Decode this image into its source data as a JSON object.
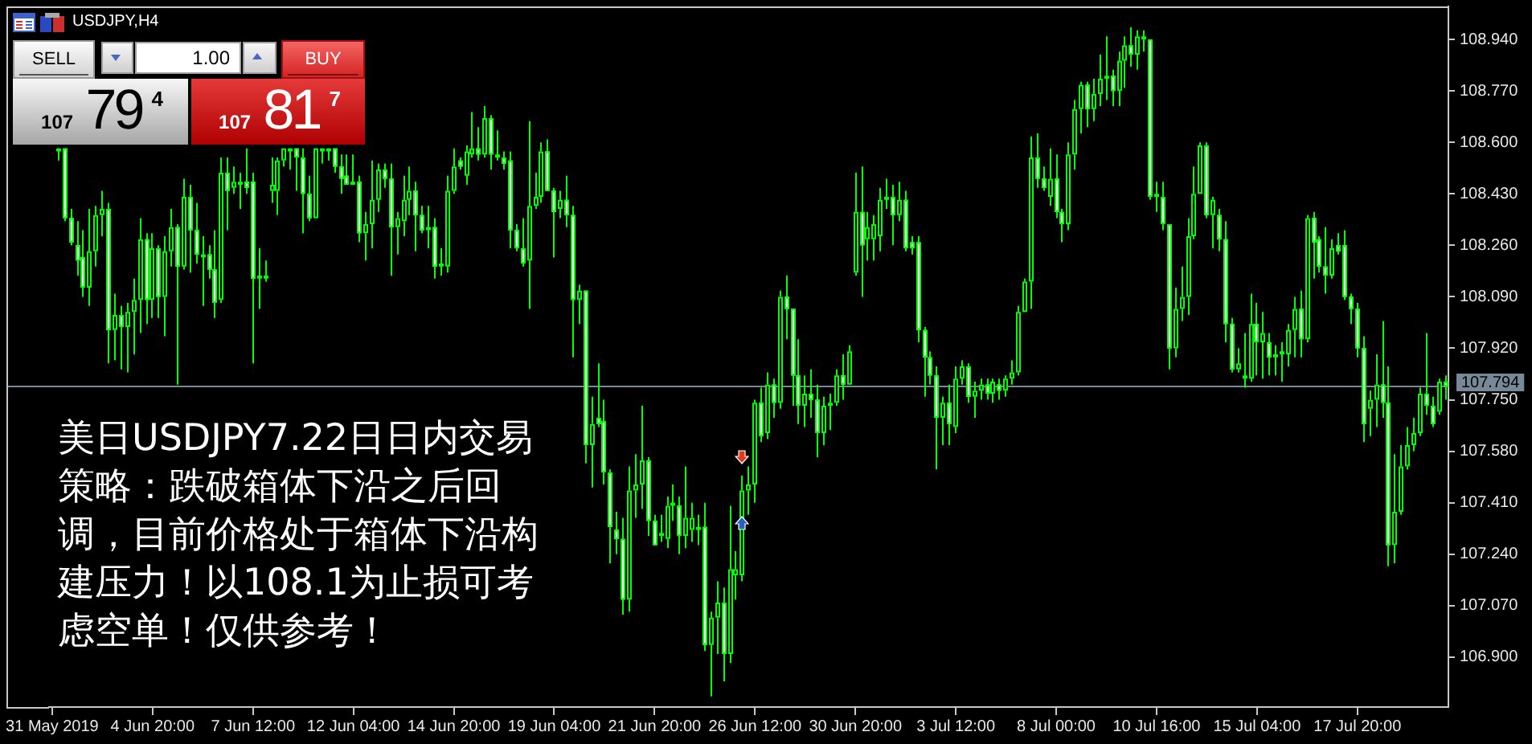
{
  "chart_data": {
    "type": "candlestick",
    "title": "USDJPY,H4",
    "annotations": [
      "美日USDJPY7.22日日内交易策略：跌破箱体下沿之后回调，目前价格处于箱体下沿构建压力！以108.1为止损可考虑空单！仅供参考！",
      "SELL",
      "1.00",
      "BUY",
      "107 79$^{4}$",
      "107 81$^{7}$"
    ],
    "categories": [
      "31 May 2019",
      null,
      null,
      null,
      null,
      null,
      null,
      null,
      null,
      null,
      null,
      null,
      null,
      null,
      null,
      null,
      "4 Jun 20:00",
      null,
      null,
      null,
      null,
      null,
      null,
      null,
      null,
      null,
      null,
      null,
      null,
      null,
      null,
      null,
      "7 Jun 12:00",
      null,
      null,
      null,
      null,
      null,
      null,
      null,
      null,
      null,
      null,
      null,
      null,
      null,
      null,
      null,
      "12 Jun 04:00",
      null,
      null,
      null,
      null,
      null,
      null,
      null,
      null,
      null,
      null,
      null,
      null,
      null,
      null,
      null,
      "14 Jun 20:00",
      null,
      null,
      null,
      null,
      null,
      null,
      null,
      null,
      null,
      null,
      null,
      null,
      null,
      null,
      null,
      "19 Jun 04:00",
      null,
      null,
      null,
      null,
      null,
      null,
      null,
      null,
      null,
      null,
      null,
      null,
      null,
      null,
      null,
      "21 Jun 20:00",
      null,
      null,
      null,
      null,
      null,
      null,
      null,
      null,
      null,
      null,
      null,
      null,
      null,
      null,
      null,
      "26 Jun 12:00",
      null,
      null,
      null,
      null,
      null,
      null,
      null,
      null,
      null,
      null,
      null,
      null,
      null,
      null,
      null,
      "30 Jun 20:00",
      null,
      null,
      null,
      null,
      null,
      null,
      null,
      null,
      null,
      null,
      null,
      null,
      null,
      null,
      null,
      "3 Jul 12:00",
      null,
      null,
      null,
      null,
      null,
      null,
      null,
      null,
      null,
      null,
      null,
      null,
      null,
      null,
      null,
      "8 Jul 00:00",
      null,
      null,
      null,
      null,
      null,
      null,
      null,
      null,
      null,
      null,
      null,
      null,
      null,
      null,
      null,
      "10 Jul 16:00",
      null,
      null,
      null,
      null,
      null,
      null,
      null,
      null,
      null,
      null,
      null,
      null,
      null,
      null,
      null,
      "15 Jul 04:00",
      null,
      null,
      null,
      null,
      null,
      null,
      null,
      null,
      null,
      null,
      null,
      null,
      null,
      null,
      null,
      "17 Jul 20:00",
      null,
      null,
      null,
      null,
      null,
      null,
      null,
      null,
      null,
      null,
      null,
      null,
      null,
      null
    ],
    "ohlc": [
      null,
      [
        108.58,
        108.58,
        108.54,
        108.57
      ],
      [
        108.58,
        108.58,
        108.34,
        108.35
      ],
      [
        108.35,
        108.38,
        108.26,
        108.27
      ],
      [
        108.26,
        108.34,
        108.16,
        108.21
      ],
      [
        108.22,
        108.31,
        108.09,
        108.12
      ],
      [
        108.12,
        108.38,
        108.06,
        108.24
      ],
      [
        108.24,
        108.39,
        108.19,
        108.36
      ],
      [
        108.36,
        108.44,
        108.29,
        108.38
      ],
      [
        108.38,
        108.4,
        107.87,
        107.98
      ],
      [
        107.98,
        108.1,
        107.88,
        108.03
      ],
      [
        108.03,
        108.06,
        107.85,
        107.99
      ],
      [
        107.99,
        108.07,
        107.84,
        108.04
      ],
      [
        108.04,
        108.15,
        107.9,
        108.08
      ],
      [
        108.08,
        108.35,
        107.97,
        108.28
      ],
      [
        108.28,
        108.3,
        108.0,
        108.08
      ],
      [
        108.08,
        108.3,
        108.02,
        108.25
      ],
      [
        108.25,
        108.26,
        108.02,
        108.09
      ],
      [
        108.09,
        108.29,
        107.96,
        108.24
      ],
      [
        108.24,
        108.38,
        108.19,
        108.32
      ],
      [
        108.32,
        108.33,
        107.8,
        108.19
      ],
      [
        108.19,
        108.48,
        108.18,
        108.42
      ],
      [
        108.42,
        108.46,
        108.17,
        108.31
      ],
      [
        108.31,
        108.4,
        108.2,
        108.23
      ],
      [
        108.23,
        108.29,
        108.06,
        108.22
      ],
      [
        108.23,
        108.26,
        108.15,
        108.18
      ],
      [
        108.18,
        108.31,
        108.02,
        108.07
      ],
      [
        108.08,
        108.55,
        108.07,
        108.5
      ],
      [
        108.5,
        108.55,
        108.31,
        108.44
      ],
      [
        108.45,
        108.52,
        108.43,
        108.47
      ],
      [
        108.46,
        108.5,
        108.38,
        108.47
      ],
      [
        108.47,
        108.58,
        108.43,
        108.45
      ],
      [
        108.47,
        108.5,
        107.87,
        108.15
      ],
      [
        108.15,
        108.25,
        108.05,
        108.16
      ],
      [
        108.16,
        108.21,
        108.14,
        108.15
      ],
      [
        108.44,
        108.55,
        108.4,
        108.46
      ],
      [
        108.44,
        108.55,
        108.36,
        108.54
      ],
      [
        108.54,
        108.58,
        108.52,
        108.58
      ],
      [
        108.58,
        108.58,
        108.51,
        108.57
      ],
      [
        108.58,
        108.58,
        108.44,
        108.55
      ],
      [
        108.55,
        108.58,
        108.3,
        108.43
      ],
      [
        108.43,
        108.49,
        108.34,
        108.35
      ],
      [
        108.35,
        108.58,
        108.35,
        108.58
      ],
      [
        108.58,
        108.58,
        108.53,
        108.57
      ],
      [
        108.57,
        108.58,
        108.54,
        108.58
      ],
      [
        108.58,
        108.58,
        108.5,
        108.52
      ],
      [
        108.52,
        108.56,
        108.43,
        108.48
      ],
      [
        108.49,
        108.56,
        108.46,
        108.46
      ],
      [
        108.47,
        108.56,
        108.46,
        108.46
      ],
      [
        108.47,
        108.49,
        108.27,
        108.3
      ],
      [
        108.3,
        108.37,
        108.21,
        108.33
      ],
      [
        108.33,
        108.54,
        108.25,
        108.41
      ],
      [
        108.41,
        108.53,
        108.37,
        108.51
      ],
      [
        108.51,
        108.53,
        108.45,
        108.48
      ],
      [
        108.48,
        108.53,
        108.16,
        108.32
      ],
      [
        108.32,
        108.37,
        108.23,
        108.35
      ],
      [
        108.34,
        108.49,
        108.29,
        108.41
      ],
      [
        108.41,
        108.52,
        108.36,
        108.44
      ],
      [
        108.44,
        108.47,
        108.24,
        108.36
      ],
      [
        108.36,
        108.39,
        108.3,
        108.31
      ],
      [
        108.32,
        108.39,
        108.25,
        108.31
      ],
      [
        108.32,
        108.35,
        108.15,
        108.19
      ],
      [
        108.2,
        108.25,
        108.16,
        108.19
      ],
      [
        108.19,
        108.49,
        108.17,
        108.44
      ],
      [
        108.44,
        108.58,
        108.43,
        108.52
      ],
      [
        108.54,
        108.55,
        108.51,
        108.52
      ],
      [
        108.49,
        108.59,
        108.46,
        108.57
      ],
      [
        108.56,
        108.7,
        108.55,
        108.58
      ],
      [
        108.58,
        108.65,
        108.54,
        108.56
      ],
      [
        108.56,
        108.72,
        108.55,
        108.68
      ],
      [
        108.68,
        108.69,
        108.51,
        108.56
      ],
      [
        108.56,
        108.64,
        108.54,
        108.55
      ],
      [
        108.55,
        108.57,
        108.51,
        108.53
      ],
      [
        108.54,
        108.57,
        108.25,
        108.31
      ],
      [
        108.31,
        108.33,
        108.24,
        108.25
      ],
      [
        108.25,
        108.35,
        108.19,
        108.2
      ],
      [
        108.21,
        108.67,
        108.05,
        108.39
      ],
      [
        108.39,
        108.5,
        108.38,
        108.42
      ],
      [
        108.42,
        108.6,
        108.4,
        108.57
      ],
      [
        108.57,
        108.61,
        108.44,
        108.44
      ],
      [
        108.44,
        108.45,
        108.22,
        108.37
      ],
      [
        108.38,
        108.44,
        108.35,
        108.41
      ],
      [
        108.41,
        108.49,
        108.32,
        108.36
      ],
      [
        108.36,
        108.39,
        107.89,
        108.08
      ],
      [
        108.08,
        108.13,
        108.0,
        108.11
      ],
      [
        108.11,
        108.11,
        107.54,
        107.6
      ],
      [
        107.6,
        107.76,
        107.46,
        107.67
      ],
      [
        107.69,
        107.87,
        107.66,
        107.67
      ],
      [
        107.68,
        107.75,
        107.47,
        107.51
      ],
      [
        107.51,
        107.52,
        107.21,
        107.33
      ],
      [
        107.32,
        107.38,
        107.24,
        107.29
      ],
      [
        107.29,
        107.36,
        107.04,
        107.09
      ],
      [
        107.09,
        107.53,
        107.05,
        107.45
      ],
      [
        107.45,
        107.57,
        107.36,
        107.47
      ],
      [
        107.47,
        107.73,
        107.39,
        107.55
      ],
      [
        107.55,
        107.56,
        107.3,
        107.35
      ],
      [
        107.35,
        107.37,
        107.27,
        107.27
      ],
      [
        107.31,
        107.37,
        107.28,
        107.3
      ],
      [
        107.29,
        107.43,
        107.26,
        107.4
      ],
      [
        107.4,
        107.47,
        107.35,
        107.41
      ],
      [
        107.4,
        107.43,
        107.24,
        107.3
      ],
      [
        107.3,
        107.53,
        107.26,
        107.36
      ],
      [
        107.32,
        107.41,
        107.28,
        107.36
      ],
      [
        107.33,
        107.37,
        107.27,
        107.32
      ],
      [
        107.33,
        107.41,
        106.92,
        106.94
      ],
      [
        106.94,
        107.05,
        106.77,
        107.03
      ],
      [
        107.03,
        107.15,
        106.91,
        107.08
      ],
      [
        107.08,
        107.13,
        106.82,
        106.91
      ],
      [
        106.91,
        107.4,
        106.88,
        107.19
      ],
      [
        107.17,
        107.25,
        107.09,
        107.19
      ],
      [
        107.17,
        107.5,
        107.15,
        107.45
      ],
      [
        107.45,
        107.53,
        107.37,
        107.47
      ],
      [
        107.47,
        107.75,
        107.41,
        107.74
      ],
      [
        107.74,
        107.79,
        107.61,
        107.63
      ],
      [
        107.64,
        107.84,
        107.62,
        107.8
      ],
      [
        107.8,
        107.82,
        107.69,
        107.74
      ],
      [
        107.74,
        108.11,
        107.72,
        108.09
      ],
      [
        108.09,
        108.16,
        107.95,
        108.05
      ],
      [
        108.05,
        108.05,
        107.73,
        107.83
      ],
      [
        107.83,
        107.95,
        107.67,
        107.73
      ],
      [
        107.73,
        107.83,
        107.66,
        107.77
      ],
      [
        107.77,
        107.85,
        107.69,
        107.75
      ],
      [
        107.75,
        107.8,
        107.56,
        107.64
      ],
      [
        107.64,
        107.76,
        107.6,
        107.73
      ],
      [
        107.73,
        107.77,
        107.65,
        107.74
      ],
      [
        107.74,
        107.85,
        107.73,
        107.83
      ],
      [
        107.83,
        107.9,
        107.75,
        107.8
      ],
      [
        107.8,
        107.93,
        107.8,
        107.91
      ],
      [
        108.17,
        108.5,
        108.16,
        108.37
      ],
      [
        108.37,
        108.52,
        108.09,
        108.26
      ],
      [
        108.28,
        108.37,
        108.21,
        108.32
      ],
      [
        108.28,
        108.36,
        108.21,
        108.33
      ],
      [
        108.29,
        108.45,
        108.24,
        108.41
      ],
      [
        108.41,
        108.48,
        108.38,
        108.42
      ],
      [
        108.42,
        108.46,
        108.26,
        108.36
      ],
      [
        108.36,
        108.47,
        108.34,
        108.41
      ],
      [
        108.41,
        108.44,
        108.24,
        108.25
      ],
      [
        108.27,
        108.29,
        108.23,
        108.25
      ],
      [
        108.27,
        108.29,
        107.94,
        107.98
      ],
      [
        107.98,
        107.99,
        107.76,
        107.89
      ],
      [
        107.89,
        107.91,
        107.8,
        107.83
      ],
      [
        107.83,
        107.86,
        107.52,
        107.69
      ],
      [
        107.69,
        107.76,
        107.6,
        107.74
      ],
      [
        107.74,
        107.8,
        107.6,
        107.67
      ],
      [
        107.66,
        107.86,
        107.64,
        107.82
      ],
      [
        107.82,
        107.88,
        107.8,
        107.86
      ],
      [
        107.86,
        107.87,
        107.74,
        107.76
      ],
      [
        107.76,
        107.81,
        107.69,
        107.78
      ],
      [
        107.78,
        107.82,
        107.75,
        107.8
      ],
      [
        107.8,
        107.82,
        107.75,
        107.77
      ],
      [
        107.77,
        107.82,
        107.74,
        107.81
      ],
      [
        107.8,
        107.82,
        107.75,
        107.78
      ],
      [
        107.78,
        107.83,
        107.76,
        107.82
      ],
      [
        107.82,
        107.88,
        107.8,
        107.84
      ],
      [
        107.84,
        108.06,
        107.83,
        108.04
      ],
      [
        108.04,
        108.15,
        108.04,
        108.14
      ],
      [
        108.14,
        108.62,
        108.05,
        108.55
      ],
      [
        108.55,
        108.63,
        108.45,
        108.48
      ],
      [
        108.48,
        108.52,
        108.44,
        108.45
      ],
      [
        108.42,
        108.58,
        108.39,
        108.48
      ],
      [
        108.48,
        108.56,
        108.35,
        108.37
      ],
      [
        108.37,
        108.38,
        108.27,
        108.33
      ],
      [
        108.33,
        108.6,
        108.31,
        108.56
      ],
      [
        108.56,
        108.74,
        108.51,
        108.71
      ],
      [
        108.71,
        108.8,
        108.63,
        108.79
      ],
      [
        108.79,
        108.8,
        108.65,
        108.71
      ],
      [
        108.71,
        108.81,
        108.67,
        108.76
      ],
      [
        108.76,
        108.89,
        108.72,
        108.81
      ],
      [
        108.81,
        108.95,
        108.74,
        108.82
      ],
      [
        108.82,
        108.84,
        108.72,
        108.77
      ],
      [
        108.77,
        108.9,
        108.72,
        108.87
      ],
      [
        108.87,
        108.95,
        108.78,
        108.92
      ],
      [
        108.92,
        108.98,
        108.85,
        108.89
      ],
      [
        108.89,
        108.97,
        108.84,
        108.95
      ],
      [
        108.95,
        108.97,
        108.9,
        108.94
      ],
      [
        108.94,
        108.94,
        108.41,
        108.42
      ],
      [
        108.43,
        108.47,
        108.37,
        108.42
      ],
      [
        108.42,
        108.47,
        108.31,
        108.33
      ],
      [
        108.33,
        108.33,
        107.85,
        107.92
      ],
      [
        107.92,
        108.12,
        107.89,
        108.05
      ],
      [
        108.05,
        108.19,
        108.01,
        108.09
      ],
      [
        108.09,
        108.35,
        108.03,
        108.29
      ],
      [
        108.29,
        108.52,
        108.28,
        108.43
      ],
      [
        108.43,
        108.6,
        108.43,
        108.59
      ],
      [
        108.59,
        108.6,
        108.35,
        108.36
      ],
      [
        108.36,
        108.42,
        108.25,
        108.41
      ],
      [
        108.36,
        108.38,
        108.24,
        108.28
      ],
      [
        108.28,
        108.34,
        107.94,
        108.0
      ],
      [
        108.0,
        108.02,
        107.84,
        107.85
      ],
      [
        107.85,
        107.92,
        107.84,
        107.87
      ],
      [
        107.83,
        107.97,
        107.79,
        107.82
      ],
      [
        107.82,
        108.1,
        107.81,
        108.0
      ],
      [
        108.0,
        108.07,
        107.83,
        107.94
      ],
      [
        107.94,
        108.04,
        107.82,
        107.97
      ],
      [
        107.94,
        107.97,
        107.83,
        107.89
      ],
      [
        107.9,
        107.93,
        107.83,
        107.89
      ],
      [
        107.9,
        107.94,
        107.81,
        107.91
      ],
      [
        107.9,
        108.0,
        107.86,
        107.98
      ],
      [
        107.98,
        108.09,
        107.89,
        108.05
      ],
      [
        108.05,
        108.11,
        107.89,
        107.95
      ],
      [
        107.95,
        108.36,
        107.94,
        108.35
      ],
      [
        108.35,
        108.37,
        108.15,
        108.27
      ],
      [
        108.28,
        108.29,
        108.17,
        108.19
      ],
      [
        108.19,
        108.32,
        108.1,
        108.16
      ],
      [
        108.16,
        108.28,
        108.15,
        108.25
      ],
      [
        108.26,
        108.3,
        108.23,
        108.24
      ],
      [
        108.26,
        108.31,
        108.08,
        108.09
      ],
      [
        108.09,
        108.1,
        108.0,
        108.05
      ],
      [
        108.05,
        108.07,
        107.89,
        107.92
      ],
      [
        107.92,
        107.96,
        107.61,
        107.67
      ],
      [
        107.72,
        107.78,
        107.63,
        107.75
      ],
      [
        107.75,
        107.9,
        107.66,
        107.8
      ],
      [
        107.8,
        108.01,
        107.69,
        107.74
      ],
      [
        107.74,
        107.86,
        107.2,
        107.27
      ],
      [
        107.27,
        107.57,
        107.21,
        107.38
      ],
      [
        107.38,
        107.6,
        107.37,
        107.53
      ],
      [
        107.53,
        107.66,
        107.52,
        107.6
      ],
      [
        107.6,
        107.69,
        107.58,
        107.64
      ],
      [
        107.64,
        107.79,
        107.63,
        107.77
      ],
      [
        107.77,
        107.97,
        107.7,
        107.73
      ],
      [
        107.73,
        107.76,
        107.66,
        107.67
      ],
      [
        107.71,
        107.82,
        107.7,
        107.81
      ],
      [
        107.81,
        107.83,
        107.75,
        107.794
      ]
    ],
    "color": "#00ff00",
    "colors": [
      null,
      "#00ff00",
      "#ffffff",
      "#ffffff",
      "#ffffff",
      "#ffffff",
      "#000000",
      "#000000",
      "#000000",
      "#ffffff",
      "#000000",
      "#ffffff",
      "#000000",
      "#000000",
      "#000000",
      "#ffffff",
      "#000000",
      "#ffffff",
      "#000000",
      "#000000",
      "#ffffff",
      "#000000",
      "#ffffff",
      "#ffffff",
      "#00ff00",
      "#ffffff",
      "#ffffff",
      "#000000",
      "#ffffff",
      "#000000",
      "#00ff00",
      "#ffffff",
      "#ffffff",
      "#00ff00",
      "#00ff00",
      "#000000",
      "#000000",
      "#000000",
      "#00ff00",
      "#ffffff",
      "#ffffff",
      "#ffffff",
      "#000000",
      "#00ff00",
      "#00ff00",
      "#ffffff",
      "#ffffff",
      "#ffffff",
      "#00ff00",
      "#ffffff",
      "#000000",
      "#000000",
      "#000000",
      "#ffffff",
      "#ffffff",
      "#000000",
      "#000000",
      "#000000",
      "#ffffff",
      "#ffffff",
      "#00ff00",
      "#ffffff",
      "#00ff00",
      "#000000",
      "#000000",
      "#ffffff",
      "#000000",
      "#000000",
      "#ffffff",
      "#000000",
      "#ffffff",
      "#00ff00",
      "#ffffff",
      "#ffffff",
      "#ffffff",
      "#ffffff",
      "#000000",
      "#000000",
      "#000000",
      "#ffffff",
      "#ffffff",
      "#000000",
      "#ffffff",
      "#ffffff",
      "#000000",
      "#ffffff",
      "#000000",
      "#ffffff",
      "#ffffff",
      "#ffffff",
      "#ffffff",
      "#ffffff",
      "#000000",
      "#000000",
      "#000000",
      "#ffffff",
      "#ffffff",
      "#00ff00",
      "#000000",
      "#00ff00",
      "#ffffff",
      "#000000",
      "#000000",
      "#00ff00",
      "#ffffff",
      "#000000",
      "#000000",
      "#ffffff",
      "#000000",
      "#000000",
      "#000000",
      "#000000",
      "#000000",
      "#ffffff",
      "#000000",
      "#ffffff",
      "#000000",
      "#ffffff",
      "#ffffff",
      "#ffffff",
      "#000000",
      "#ffffff",
      "#ffffff",
      "#000000",
      "#00ff00",
      "#000000",
      "#ffffff",
      "#000000",
      "#000000",
      "#ffffff",
      "#000000",
      "#000000",
      "#000000",
      "#00ff00",
      "#ffffff",
      "#000000",
      "#ffffff",
      "#ffffff",
      "#ffffff",
      "#ffffff",
      "#ffffff",
      "#ffffff",
      "#000000",
      "#ffffff",
      "#000000",
      "#000000",
      "#ffffff",
      "#000000",
      "#000000",
      "#ffffff",
      "#000000",
      "#ffffff",
      "#000000",
      "#000000",
      "#000000",
      "#000000",
      "#000000",
      "#ffffff",
      "#ffffff",
      "#000000",
      "#ffffff",
      "#ffffff",
      "#000000",
      "#000000",
      "#000000",
      "#ffffff",
      "#000000",
      "#000000",
      "#00ff00",
      "#ffffff",
      "#000000",
      "#000000",
      "#ffffff",
      "#000000",
      "#00ff00",
      "#ffffff",
      "#00ff00",
      "#ffffff",
      "#ffffff",
      "#000000",
      "#000000",
      "#000000",
      "#000000",
      "#000000",
      "#ffffff",
      "#000000",
      "#ffffff",
      "#ffffff",
      "#ffffff",
      "#000000",
      "#00ff00",
      "#000000",
      "#ffffff",
      "#000000",
      "#ffffff",
      "#00ff00",
      "#00ff00",
      "#000000",
      "#000000",
      "#ffffff",
      "#000000",
      "#ffffff",
      "#ffffff",
      "#ffffff",
      "#000000",
      "#ffffff",
      "#ffffff",
      "#ffffff",
      "#ffffff",
      "#ffffff",
      "#000000",
      "#000000",
      "#ffffff",
      "#ffffff",
      "#000000",
      "#000000",
      "#000000",
      "#000000",
      "#000000",
      "#ffffff",
      "#ffffff",
      "#000000",
      "#ffffff"
    ],
    "ylim": [
      106.735,
      109.049
    ],
    "yticks": [
      {
        "value": 108.94,
        "label": "108.940"
      },
      {
        "value": 108.77,
        "label": "108.770"
      },
      {
        "value": 108.6,
        "label": "108.600"
      },
      {
        "value": 108.43,
        "label": "108.430"
      },
      {
        "value": 108.26,
        "label": "108.260"
      },
      {
        "value": 108.09,
        "label": "108.090"
      },
      {
        "value": 107.92,
        "label": "107.920"
      },
      {
        "value": 107.75,
        "label": "107.750"
      },
      {
        "value": 107.58,
        "label": "107.580"
      },
      {
        "value": 107.41,
        "label": "107.410"
      },
      {
        "value": 107.24,
        "label": "107.240"
      },
      {
        "value": 107.07,
        "label": "107.070"
      },
      {
        "value": 106.9,
        "label": "106.900"
      }
    ],
    "ref_lines": [
      {
        "axis": "y",
        "value": 107.794,
        "label": "107.794",
        "color": "#778899"
      }
    ]
  }
}
